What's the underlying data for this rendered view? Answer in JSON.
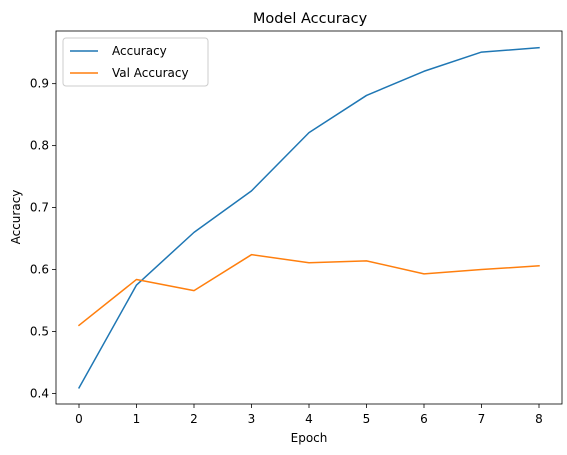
{
  "chart_data": {
    "type": "line",
    "title": "Model Accuracy",
    "xlabel": "Epoch",
    "ylabel": "Accuracy",
    "x": [
      0,
      1,
      2,
      3,
      4,
      5,
      6,
      7,
      8
    ],
    "xlim": [
      -0.4,
      8.4
    ],
    "ylim": [
      0.383,
      0.985
    ],
    "xticks": [
      "0",
      "1",
      "2",
      "3",
      "4",
      "5",
      "6",
      "7",
      "8"
    ],
    "yticks": [
      "0.4",
      "0.5",
      "0.6",
      "0.7",
      "0.8",
      "0.9"
    ],
    "grid": false,
    "legend_position": "top-left",
    "series": [
      {
        "name": "Accuracy",
        "color": "#1f77b4",
        "values": [
          0.409,
          0.575,
          0.66,
          0.727,
          0.821,
          0.881,
          0.92,
          0.951,
          0.958
        ]
      },
      {
        "name": "Val Accuracy",
        "color": "#ff7f0e",
        "values": [
          0.51,
          0.584,
          0.566,
          0.624,
          0.611,
          0.614,
          0.593,
          0.6,
          0.606
        ]
      }
    ]
  }
}
